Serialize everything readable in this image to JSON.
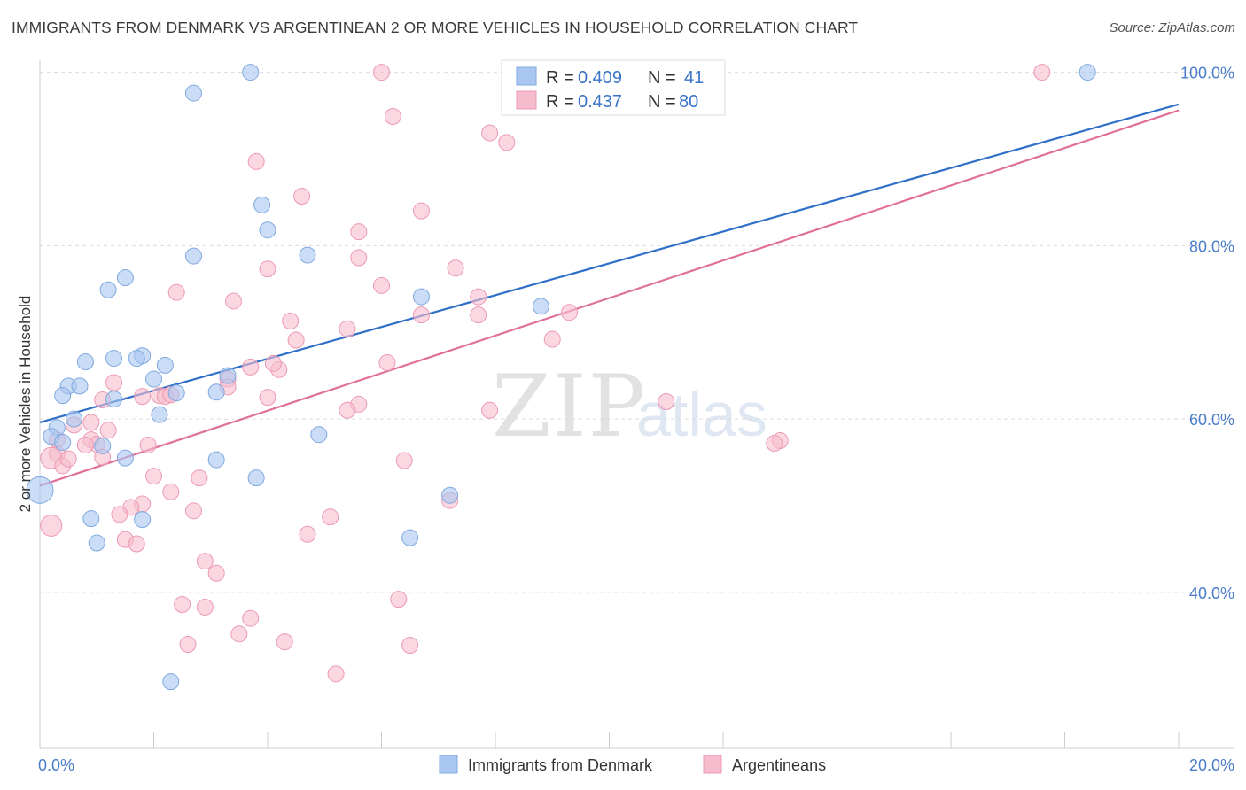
{
  "source": "Source: ZipAtlas.com",
  "watermark": {
    "zip": "ZIP",
    "atlas": "atlas"
  },
  "legend_box": {
    "rows": [
      {
        "r_label": "R =",
        "r_value": "0.409",
        "n_label": "N =",
        "n_value": "41"
      },
      {
        "r_label": "R =",
        "r_value": "0.437",
        "n_label": "N =",
        "n_value": "80"
      }
    ]
  },
  "chart_data": {
    "type": "scatter",
    "title": "IMMIGRANTS FROM DENMARK VS ARGENTINEAN 2 OR MORE VEHICLES IN HOUSEHOLD CORRELATION CHART",
    "xlabel": "",
    "ylabel": "2 or more Vehicles in Household",
    "xlim": [
      0,
      20
    ],
    "ylim": [
      22,
      102
    ],
    "x_tick_labels": [
      "0.0%",
      "20.0%"
    ],
    "y_ticks": [
      40,
      60,
      80,
      100
    ],
    "y_tick_labels": [
      "40.0%",
      "60.0%",
      "80.0%",
      "100.0%"
    ],
    "colors": {
      "denmark_fill": "#a9c7f0",
      "denmark_stroke": "#7fa8e0",
      "denmark_line": "#3070c8",
      "argentinean_fill": "#f6bccd",
      "argentinean_stroke": "#ec9ab3",
      "argentinean_line": "#e0709a",
      "value_text": "#3a74c8"
    },
    "series": [
      {
        "name": "Immigrants from Denmark",
        "r": 0.409,
        "n": 41,
        "trend": {
          "x0": 0,
          "y0": 59.6,
          "x1": 20,
          "y1": 96.3
        },
        "points": [
          [
            3.7,
            100
          ],
          [
            18.4,
            100
          ],
          [
            2.7,
            97.6
          ],
          [
            3.9,
            84.7
          ],
          [
            4.0,
            81.8
          ],
          [
            2.7,
            78.8
          ],
          [
            4.7,
            78.9
          ],
          [
            1.5,
            76.3
          ],
          [
            1.2,
            74.9
          ],
          [
            6.7,
            74.1
          ],
          [
            8.8,
            73.0
          ],
          [
            1.8,
            67.3
          ],
          [
            1.3,
            67.0
          ],
          [
            1.7,
            67.0
          ],
          [
            0.8,
            66.6
          ],
          [
            2.2,
            66.2
          ],
          [
            3.3,
            65.0
          ],
          [
            2.0,
            64.6
          ],
          [
            0.5,
            63.8
          ],
          [
            0.7,
            63.8
          ],
          [
            0.4,
            62.7
          ],
          [
            2.4,
            63.0
          ],
          [
            3.1,
            63.1
          ],
          [
            1.3,
            62.3
          ],
          [
            2.1,
            60.5
          ],
          [
            0.6,
            60.0
          ],
          [
            0.3,
            59.0
          ],
          [
            0.2,
            58.0
          ],
          [
            0.4,
            57.3
          ],
          [
            1.1,
            56.9
          ],
          [
            4.9,
            58.2
          ],
          [
            1.5,
            55.5
          ],
          [
            3.1,
            55.3
          ],
          [
            3.8,
            53.2
          ],
          [
            7.2,
            51.2
          ],
          [
            0.0,
            51.8
          ],
          [
            0.9,
            48.5
          ],
          [
            1.8,
            48.4
          ],
          [
            6.5,
            46.3
          ],
          [
            1.0,
            45.7
          ],
          [
            2.3,
            29.7
          ]
        ]
      },
      {
        "name": "Argentineans",
        "r": 0.437,
        "n": 80,
        "trend": {
          "x0": 0,
          "y0": 52.3,
          "x1": 20,
          "y1": 95.6
        },
        "points": [
          [
            6.0,
            100
          ],
          [
            17.6,
            100
          ],
          [
            6.2,
            94.9
          ],
          [
            7.9,
            93.0
          ],
          [
            8.2,
            91.9
          ],
          [
            3.8,
            89.7
          ],
          [
            4.6,
            85.7
          ],
          [
            6.7,
            84.0
          ],
          [
            5.6,
            81.6
          ],
          [
            5.6,
            78.6
          ],
          [
            7.3,
            77.4
          ],
          [
            4.0,
            77.3
          ],
          [
            6.0,
            75.4
          ],
          [
            2.4,
            74.6
          ],
          [
            3.4,
            73.6
          ],
          [
            7.7,
            74.1
          ],
          [
            9.3,
            72.3
          ],
          [
            6.7,
            72.0
          ],
          [
            7.7,
            72.0
          ],
          [
            4.4,
            71.3
          ],
          [
            5.4,
            70.4
          ],
          [
            9.0,
            69.2
          ],
          [
            4.5,
            69.1
          ],
          [
            6.1,
            66.5
          ],
          [
            3.7,
            66.0
          ],
          [
            4.2,
            65.7
          ],
          [
            3.3,
            64.6
          ],
          [
            1.3,
            64.2
          ],
          [
            3.3,
            63.7
          ],
          [
            2.1,
            62.7
          ],
          [
            2.2,
            62.6
          ],
          [
            1.8,
            62.6
          ],
          [
            4.0,
            62.5
          ],
          [
            1.1,
            62.2
          ],
          [
            11.0,
            62.0
          ],
          [
            5.6,
            61.7
          ],
          [
            5.4,
            61.0
          ],
          [
            7.9,
            61.0
          ],
          [
            0.9,
            59.6
          ],
          [
            0.6,
            59.3
          ],
          [
            1.2,
            58.7
          ],
          [
            0.3,
            57.6
          ],
          [
            0.9,
            57.6
          ],
          [
            1.0,
            57.1
          ],
          [
            0.8,
            57.0
          ],
          [
            1.9,
            57.0
          ],
          [
            13.0,
            57.5
          ],
          [
            12.9,
            57.2
          ],
          [
            0.3,
            56.0
          ],
          [
            0.2,
            55.5
          ],
          [
            1.1,
            55.6
          ],
          [
            6.4,
            55.2
          ],
          [
            0.4,
            54.6
          ],
          [
            2.0,
            53.4
          ],
          [
            2.8,
            53.2
          ],
          [
            2.3,
            51.6
          ],
          [
            7.2,
            50.6
          ],
          [
            1.8,
            50.2
          ],
          [
            1.6,
            49.8
          ],
          [
            2.7,
            49.4
          ],
          [
            1.4,
            49.0
          ],
          [
            5.1,
            48.7
          ],
          [
            0.2,
            47.7
          ],
          [
            4.7,
            46.7
          ],
          [
            1.5,
            46.1
          ],
          [
            1.7,
            45.6
          ],
          [
            2.9,
            43.6
          ],
          [
            3.1,
            42.2
          ],
          [
            6.3,
            39.2
          ],
          [
            2.5,
            38.6
          ],
          [
            2.9,
            38.3
          ],
          [
            3.7,
            37.0
          ],
          [
            3.5,
            35.2
          ],
          [
            4.3,
            34.3
          ],
          [
            2.6,
            34.0
          ],
          [
            6.5,
            33.9
          ],
          [
            5.2,
            30.6
          ],
          [
            2.3,
            62.8
          ],
          [
            4.1,
            66.4
          ],
          [
            0.5,
            55.4
          ]
        ]
      }
    ]
  }
}
